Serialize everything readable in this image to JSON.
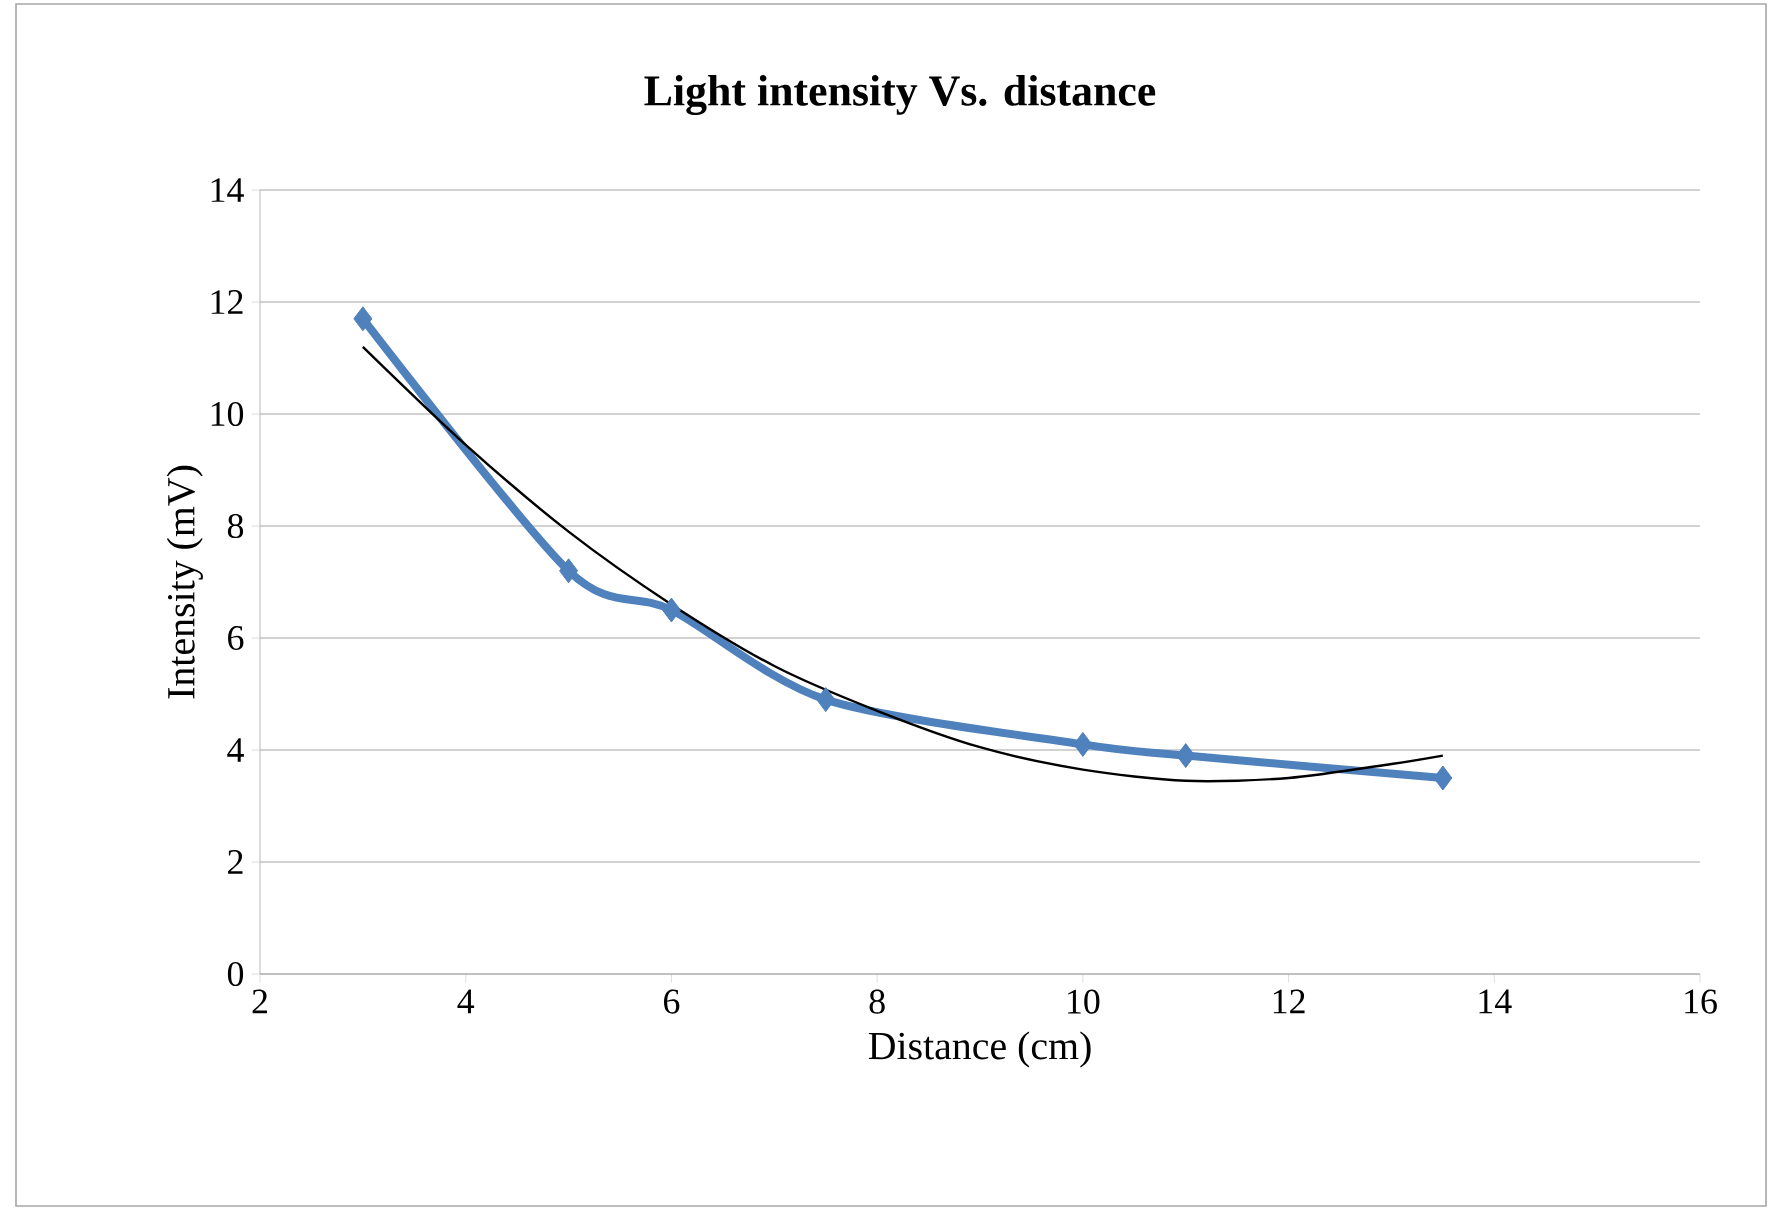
{
  "chart_data": {
    "type": "line",
    "title": "Light intensity  Vs. distance",
    "xlabel": "Distance (cm)",
    "ylabel": "Intensity (mV)",
    "xlim": [
      2,
      16
    ],
    "xticks": [
      2,
      4,
      6,
      8,
      10,
      12,
      14,
      16
    ],
    "ylim": [
      0,
      14
    ],
    "yticks": [
      0,
      2,
      4,
      6,
      8,
      10,
      12,
      14
    ],
    "grid": "y",
    "series": [
      {
        "color": "#4f81bd",
        "marker": "diamond",
        "x": [
          3,
          5,
          6,
          7.5,
          10,
          11,
          13.5
        ],
        "values": [
          11.7,
          7.2,
          6.5,
          4.9,
          4.1,
          3.9,
          3.5
        ]
      },
      {
        "color": "#000000",
        "marker": "none",
        "x": [
          3,
          4,
          5,
          6,
          7,
          8,
          9,
          10,
          11,
          12,
          13,
          13.5
        ],
        "values": [
          11.2,
          9.45,
          7.9,
          6.6,
          5.5,
          4.7,
          4.05,
          3.65,
          3.45,
          3.5,
          3.75,
          3.9
        ]
      }
    ]
  }
}
